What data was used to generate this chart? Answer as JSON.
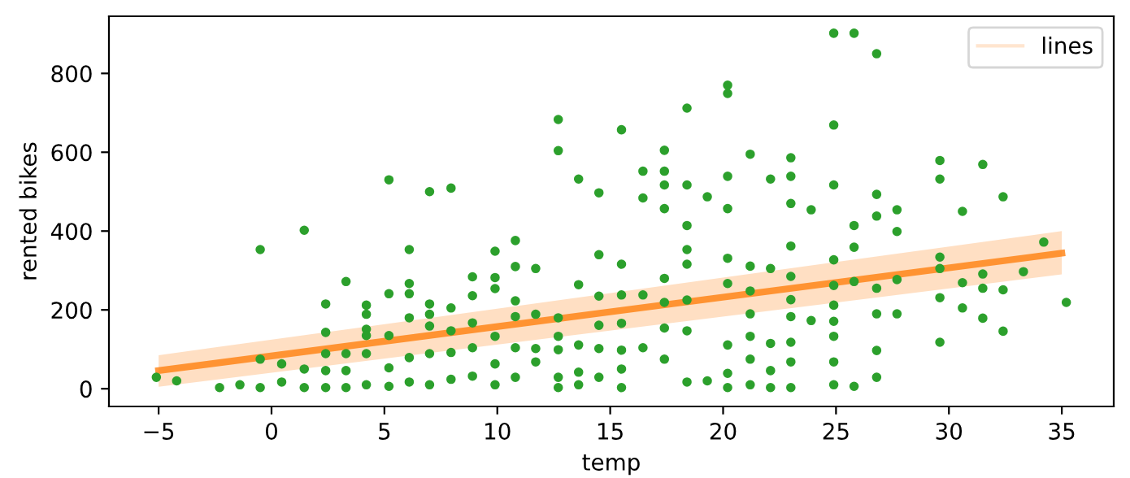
{
  "chart_data": {
    "type": "scatter",
    "xlabel": "temp",
    "ylabel": "rented bikes",
    "xlim": [
      -7.2,
      37.3
    ],
    "ylim": [
      -45,
      945
    ],
    "xticks": [
      -5,
      0,
      5,
      10,
      15,
      20,
      25,
      30,
      35
    ],
    "yticks": [
      0,
      200,
      400,
      600,
      800
    ],
    "grid": false,
    "legend": "top right",
    "series": [
      {
        "type": "line",
        "name": "lines",
        "color": "#ff7f0e",
        "x": [
          -5,
          35
        ],
        "values": [
          46,
          344
        ],
        "lower": [
          5,
          290
        ],
        "upper": [
          85,
          400
        ]
      },
      {
        "marker": "circle",
        "color": "#2ca02c",
        "x": [
          -5.1,
          -4.2,
          -2.3,
          -1.4,
          -0.5,
          -0.5,
          -0.5,
          0.45,
          0.45,
          1.45,
          1.45,
          1.45,
          2.4,
          2.4,
          2.4,
          2.4,
          2.4,
          3.3,
          3.3,
          3.3,
          3.3,
          4.2,
          4.2,
          4.2,
          4.2,
          4.2,
          4.2,
          5.2,
          5.2,
          5.2,
          5.2,
          5.2,
          6.1,
          6.1,
          6.1,
          6.1,
          6.1,
          6.1,
          7.0,
          7.0,
          7.0,
          7.0,
          7.0,
          7.0,
          7.95,
          7.95,
          7.95,
          7.95,
          7.95,
          8.9,
          8.9,
          8.9,
          8.9,
          8.9,
          9.9,
          9.9,
          9.9,
          9.9,
          9.9,
          9.9,
          10.8,
          10.8,
          10.8,
          10.8,
          10.8,
          10.8,
          11.7,
          11.7,
          11.7,
          11.7,
          12.7,
          12.7,
          12.7,
          12.7,
          12.7,
          12.7,
          12.7,
          13.6,
          13.6,
          13.6,
          13.6,
          13.6,
          14.5,
          14.5,
          14.5,
          14.5,
          14.5,
          14.5,
          15.5,
          15.5,
          15.5,
          15.5,
          15.5,
          15.5,
          15.5,
          16.45,
          16.45,
          16.45,
          16.45,
          17.4,
          17.4,
          17.4,
          17.4,
          17.4,
          17.4,
          17.4,
          17.4,
          18.4,
          18.4,
          18.4,
          18.4,
          18.4,
          18.4,
          18.4,
          18.4,
          19.3,
          19.3,
          20.2,
          20.2,
          20.2,
          20.2,
          20.2,
          20.2,
          20.2,
          20.2,
          20.2,
          21.2,
          21.2,
          21.2,
          21.2,
          21.2,
          21.2,
          21.2,
          22.1,
          22.1,
          22.1,
          22.1,
          22.1,
          23.0,
          23.0,
          23.0,
          23.0,
          23.0,
          23.0,
          23.0,
          23.0,
          23.0,
          23.0,
          23.9,
          23.9,
          24.9,
          24.9,
          24.9,
          24.9,
          24.9,
          24.9,
          24.9,
          24.9,
          24.9,
          24.9,
          25.8,
          25.8,
          25.8,
          25.8,
          25.8,
          26.8,
          26.8,
          26.8,
          26.8,
          26.8,
          26.8,
          26.8,
          27.7,
          27.7,
          27.7,
          27.7,
          29.6,
          29.6,
          29.6,
          29.6,
          29.6,
          29.6,
          30.6,
          30.6,
          30.6,
          31.5,
          31.5,
          31.5,
          31.5,
          32.4,
          32.4,
          32.4,
          33.3,
          34.2,
          35.2
        ],
        "values": [
          29,
          20,
          3,
          10,
          3,
          353,
          75,
          17,
          63,
          402,
          3,
          50,
          215,
          143,
          3,
          46,
          89,
          272,
          3,
          46,
          89,
          212,
          189,
          151,
          89,
          10,
          135,
          530,
          241,
          135,
          53,
          6,
          353,
          267,
          241,
          180,
          79,
          17,
          500,
          215,
          189,
          159,
          89,
          10,
          509,
          205,
          147,
          92,
          24,
          284,
          236,
          167,
          104,
          32,
          349,
          282,
          254,
          133,
          63,
          10,
          376,
          310,
          223,
          183,
          104,
          29,
          305,
          189,
          102,
          68,
          683,
          604,
          180,
          133,
          99,
          29,
          3,
          532,
          264,
          111,
          42,
          10,
          497,
          340,
          235,
          102,
          29,
          161,
          657,
          316,
          238,
          166,
          98,
          50,
          3,
          552,
          484,
          238,
          104,
          605,
          552,
          517,
          457,
          280,
          219,
          154,
          75,
          712,
          517,
          414,
          353,
          316,
          225,
          147,
          17,
          487,
          20,
          770,
          749,
          539,
          457,
          331,
          267,
          111,
          39,
          3,
          595,
          311,
          248,
          190,
          133,
          75,
          10,
          532,
          305,
          115,
          46,
          3,
          586,
          539,
          470,
          362,
          285,
          226,
          183,
          118,
          68,
          3,
          454,
          173,
          902,
          669,
          517,
          327,
          262,
          212,
          171,
          133,
          68,
          10,
          902,
          414,
          359,
          272,
          6,
          850,
          493,
          438,
          255,
          190,
          97,
          29,
          454,
          399,
          277,
          190,
          579,
          532,
          334,
          305,
          231,
          118,
          450,
          269,
          205,
          569,
          291,
          255,
          179,
          487,
          251,
          146,
          297,
          372,
          219
        ]
      }
    ]
  }
}
